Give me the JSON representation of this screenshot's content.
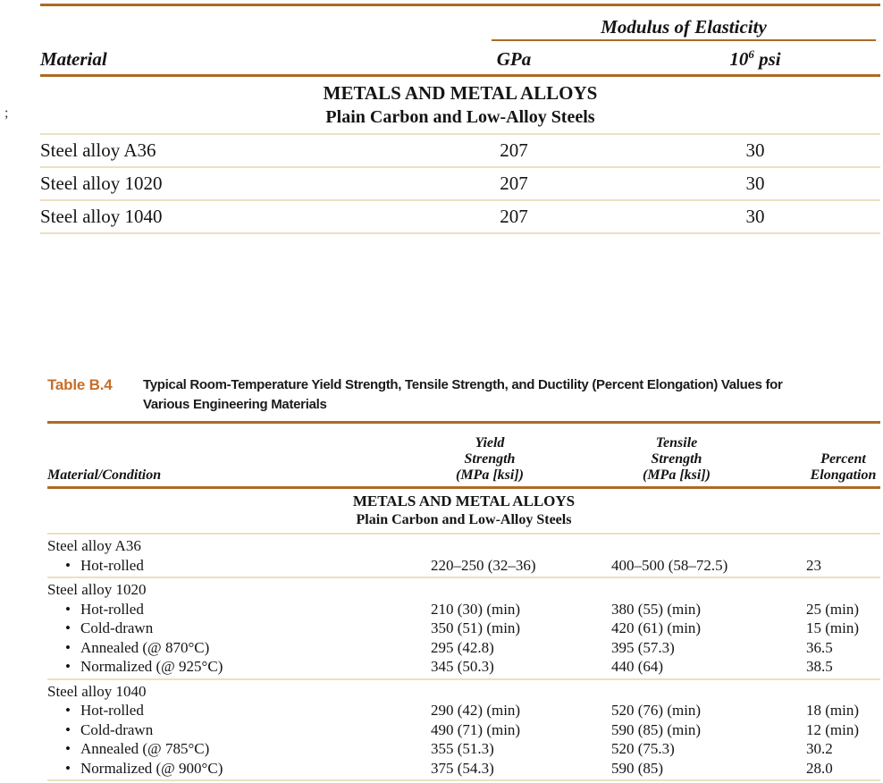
{
  "page": {
    "margin_artifact": ";"
  },
  "colors": {
    "rule_orange": "#ad6a24",
    "label_orange": "#c76e28",
    "rule_tan": "#ecdfc3",
    "text": "#141414",
    "background": "#ffffff"
  },
  "table1": {
    "group_header": "Modulus of Elasticity",
    "col_material": "Material",
    "col_gpa": "GPa",
    "col_psi": {
      "base": "10",
      "sup": "6",
      "unit": " psi"
    },
    "section1": "METALS AND METAL ALLOYS",
    "section2": "Plain Carbon and Low-Alloy Steels",
    "rows": [
      {
        "material": "Steel alloy A36",
        "gpa": "207",
        "psi": "30"
      },
      {
        "material": "Steel alloy 1020",
        "gpa": "207",
        "psi": "30"
      },
      {
        "material": "Steel alloy 1040",
        "gpa": "207",
        "psi": "30"
      }
    ]
  },
  "table2": {
    "label": "Table B.4",
    "caption_line1": "Typical Room-Temperature Yield Strength, Tensile Strength, and Ductility (Percent Elongation) Values for",
    "caption_line2": "Various Engineering Materials",
    "col_material": "Material/Condition",
    "col_yield": [
      "Yield",
      "Strength",
      "(MPa [ksi])"
    ],
    "col_tensile": [
      "Tensile",
      "Strength",
      "(MPa [ksi])"
    ],
    "col_elong": [
      "Percent",
      "Elongation"
    ],
    "section1": "METALS AND METAL ALLOYS",
    "section2": "Plain Carbon and Low-Alloy Steels",
    "bullet": "•",
    "groups": [
      {
        "name": "Steel alloy A36",
        "rows": [
          {
            "condition": "Hot-rolled",
            "yield": "220–250 (32–36)",
            "tensile": "400–500 (58–72.5)",
            "elong": "23"
          }
        ]
      },
      {
        "name": "Steel alloy 1020",
        "rows": [
          {
            "condition": "Hot-rolled",
            "yield": "210 (30) (min)",
            "tensile": "380 (55) (min)",
            "elong": "25 (min)"
          },
          {
            "condition": "Cold-drawn",
            "yield": "350 (51) (min)",
            "tensile": "420 (61) (min)",
            "elong": "15 (min)"
          },
          {
            "condition": "Annealed (@ 870°C)",
            "yield": "295 (42.8)",
            "tensile": "395 (57.3)",
            "elong": "36.5"
          },
          {
            "condition": "Normalized (@ 925°C)",
            "yield": "345 (50.3)",
            "tensile": "440 (64)",
            "elong": "38.5"
          }
        ]
      },
      {
        "name": "Steel alloy 1040",
        "rows": [
          {
            "condition": "Hot-rolled",
            "yield": "290 (42) (min)",
            "tensile": "520 (76) (min)",
            "elong": "18 (min)"
          },
          {
            "condition": "Cold-drawn",
            "yield": "490 (71) (min)",
            "tensile": "590 (85) (min)",
            "elong": "12 (min)"
          },
          {
            "condition": "Annealed (@ 785°C)",
            "yield": "355 (51.3)",
            "tensile": "520 (75.3)",
            "elong": "30.2"
          },
          {
            "condition": "Normalized (@ 900°C)",
            "yield": "375 (54.3)",
            "tensile": "590 (85)",
            "elong": "28.0"
          }
        ]
      }
    ]
  }
}
